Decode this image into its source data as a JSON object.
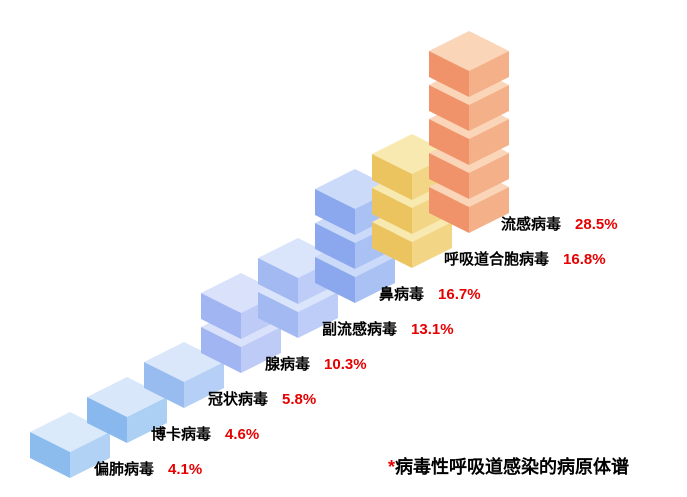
{
  "chart_data": {
    "type": "bar",
    "variant": "isometric-cube-stacks",
    "title": "",
    "categories": [
      "偏肺病毒",
      "博卡病毒",
      "冠状病毒",
      "腺病毒",
      "副流感病毒",
      "鼻病毒",
      "呼吸道合胞病毒",
      "流感病毒"
    ],
    "values": [
      4.1,
      4.6,
      5.8,
      10.3,
      13.1,
      16.7,
      16.8,
      28.5
    ],
    "value_labels": [
      "4.1%",
      "4.6%",
      "5.8%",
      "10.3%",
      "13.1%",
      "16.7%",
      "16.8%",
      "28.5%"
    ],
    "cube_counts": [
      1,
      1,
      1,
      2,
      2,
      3,
      3,
      5
    ],
    "cube_colors": [
      {
        "top": "#dbeafb",
        "left": "#8cbbee",
        "right": "#b1d2f5"
      },
      {
        "top": "#d8e8fa",
        "left": "#88b8ed",
        "right": "#accff4"
      },
      {
        "top": "#dae7fb",
        "left": "#98bcf0",
        "right": "#b5cff6"
      },
      {
        "top": "#d9e2fa",
        "left": "#a0b5f1",
        "right": "#bdcbf6"
      },
      {
        "top": "#dae4fb",
        "left": "#a2b9f1",
        "right": "#becdf7"
      },
      {
        "top": "#ccdaf9",
        "left": "#8ba8ee",
        "right": "#aac1f4"
      },
      {
        "top": "#f8e9b0",
        "left": "#ecc45f",
        "right": "#f2d685"
      },
      {
        "top": "#fad5b8",
        "left": "#f0936b",
        "right": "#f4b189"
      }
    ],
    "xlabel": "",
    "ylabel": "",
    "grid": false,
    "axes_visible": false,
    "legend_position": "none",
    "layout": "stacks ascend diagonally from bottom-left to top-right, label with percent to the right of each stack base"
  },
  "label_style": {
    "name_color": "#000000",
    "percent_color": "#e60000"
  },
  "footnote": {
    "marker": "*",
    "marker_color": "#e60000",
    "text": "病毒性呼吸道感染的病原体谱"
  }
}
